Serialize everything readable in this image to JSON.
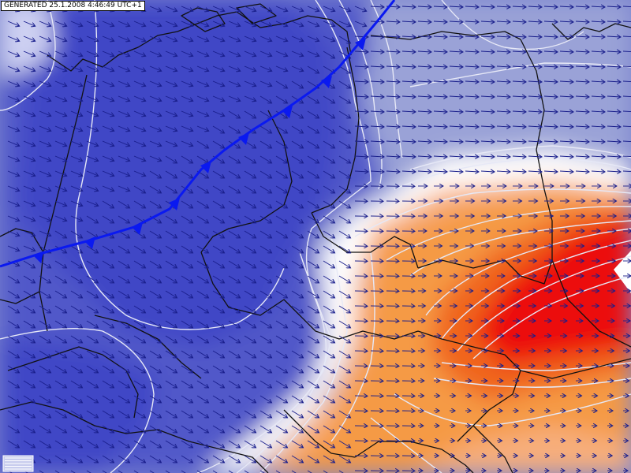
{
  "header": {
    "generated_label": "GENERATED 25.1.2008 4:46:49 UTC+1"
  },
  "map": {
    "field_colors": {
      "very_cold": "#cdd0f2",
      "cold_dark": "#3f47c6",
      "cold_mid": "#5158c9",
      "cold": "#7c85cf",
      "cool": "#9aa2d7",
      "neutral": "#ffffff",
      "mild": "#f7ae7c",
      "warm": "#f59a45",
      "hot": "#f0651e",
      "very_hot": "#ec1010"
    },
    "isoline_color": "#e6e8f6",
    "border_color": "#111111",
    "wind_vector_color": "#1a1f8c",
    "front": {
      "type": "cold-front",
      "color": "#0a19f0",
      "symbol": "triangle-icon"
    },
    "logo": {
      "icon": "grid-logo-icon"
    }
  }
}
